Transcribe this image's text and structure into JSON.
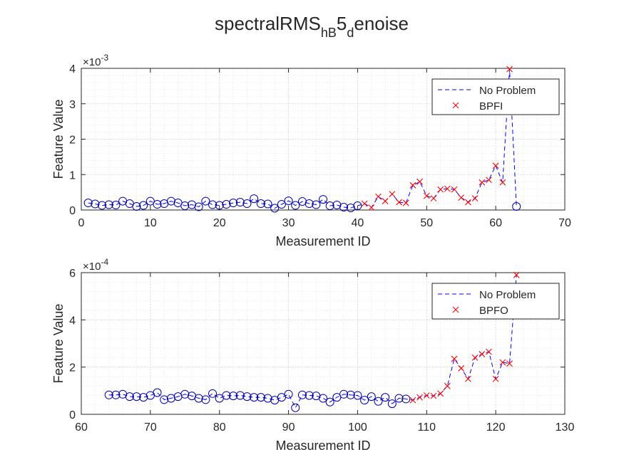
{
  "figure": {
    "title_main": "spectralRMS",
    "title_sub1": "hB",
    "title_mid": "5",
    "title_sub2": "d",
    "title_end": "enoise"
  },
  "colors": {
    "no_problem": "#0000ff",
    "fault_marker": "#ff0000",
    "healthy_marker": "#0000aa",
    "grid": "#d9d9d9",
    "axis": "#262626"
  },
  "legend_labels": {
    "no_problem": "No Problem"
  },
  "chart_data": [
    {
      "type": "line",
      "xlabel": "Measurement ID",
      "ylabel": "Feature Value",
      "exponent_label": "×10",
      "exponent_power": "-3",
      "scale": 0.001,
      "xlim": [
        0,
        70
      ],
      "ylim": [
        0,
        4
      ],
      "xticks": [
        0,
        10,
        20,
        30,
        40,
        50,
        60,
        70
      ],
      "yticks": [
        0,
        1,
        2,
        3,
        4
      ],
      "fault_label": "BPFI",
      "healthy_points": {
        "x": [
          1,
          2,
          3,
          4,
          5,
          6,
          7,
          8,
          9,
          10,
          11,
          12,
          13,
          14,
          15,
          16,
          17,
          18,
          19,
          20,
          21,
          22,
          23,
          24,
          25,
          26,
          27,
          28,
          29,
          30,
          31,
          32,
          33,
          34,
          35,
          36,
          37,
          38,
          39,
          40,
          63
        ],
        "y": [
          0.2,
          0.17,
          0.13,
          0.15,
          0.14,
          0.25,
          0.18,
          0.1,
          0.13,
          0.25,
          0.16,
          0.18,
          0.25,
          0.2,
          0.12,
          0.15,
          0.09,
          0.25,
          0.15,
          0.13,
          0.16,
          0.2,
          0.22,
          0.18,
          0.32,
          0.18,
          0.17,
          0.05,
          0.16,
          0.26,
          0.13,
          0.24,
          0.18,
          0.15,
          0.3,
          0.12,
          0.14,
          0.08,
          0.06,
          0.12,
          0.1
        ]
      },
      "fault_points": {
        "x": [
          41,
          42,
          43,
          44,
          45,
          46,
          47,
          48,
          49,
          50,
          51,
          52,
          53,
          54,
          55,
          56,
          57,
          58,
          59,
          60,
          61,
          62
        ],
        "y": [
          0.18,
          0.07,
          0.38,
          0.25,
          0.45,
          0.22,
          0.2,
          0.7,
          0.8,
          0.4,
          0.33,
          0.58,
          0.6,
          0.58,
          0.35,
          0.22,
          0.33,
          0.78,
          0.85,
          1.25,
          0.78,
          3.98
        ]
      }
    },
    {
      "type": "line",
      "xlabel": "Measurement ID",
      "ylabel": "Feature Value",
      "exponent_label": "×10",
      "exponent_power": "-4",
      "scale": 0.0001,
      "xlim": [
        60,
        130
      ],
      "ylim": [
        0,
        6
      ],
      "xticks": [
        60,
        70,
        80,
        90,
        100,
        110,
        120,
        130
      ],
      "yticks": [
        0,
        2,
        4,
        6
      ],
      "fault_label": "BPFO",
      "healthy_points": {
        "x": [
          64,
          65,
          66,
          67,
          68,
          69,
          70,
          71,
          72,
          73,
          74,
          75,
          76,
          77,
          78,
          79,
          80,
          81,
          82,
          83,
          84,
          85,
          86,
          87,
          88,
          89,
          90,
          91,
          92,
          93,
          94,
          95,
          96,
          97,
          98,
          99,
          100,
          101,
          102,
          103,
          104,
          105,
          106,
          107
        ],
        "y": [
          0.82,
          0.82,
          0.85,
          0.75,
          0.75,
          0.72,
          0.8,
          0.92,
          0.62,
          0.68,
          0.75,
          0.85,
          0.78,
          0.68,
          0.62,
          0.88,
          0.68,
          0.8,
          0.78,
          0.8,
          0.75,
          0.72,
          0.72,
          0.68,
          0.6,
          0.72,
          0.85,
          0.28,
          0.82,
          0.8,
          0.78,
          0.68,
          0.52,
          0.72,
          0.85,
          0.82,
          0.8,
          0.6,
          0.75,
          0.55,
          0.72,
          0.45,
          0.68,
          0.65
        ]
      },
      "fault_points": {
        "x": [
          108,
          109,
          110,
          111,
          112,
          113,
          114,
          115,
          116,
          117,
          118,
          119,
          120,
          121,
          122,
          123
        ],
        "y": [
          0.6,
          0.72,
          0.8,
          0.78,
          0.88,
          1.2,
          2.35,
          1.95,
          1.5,
          2.4,
          2.55,
          2.65,
          1.5,
          2.2,
          2.15,
          5.9
        ]
      }
    }
  ]
}
